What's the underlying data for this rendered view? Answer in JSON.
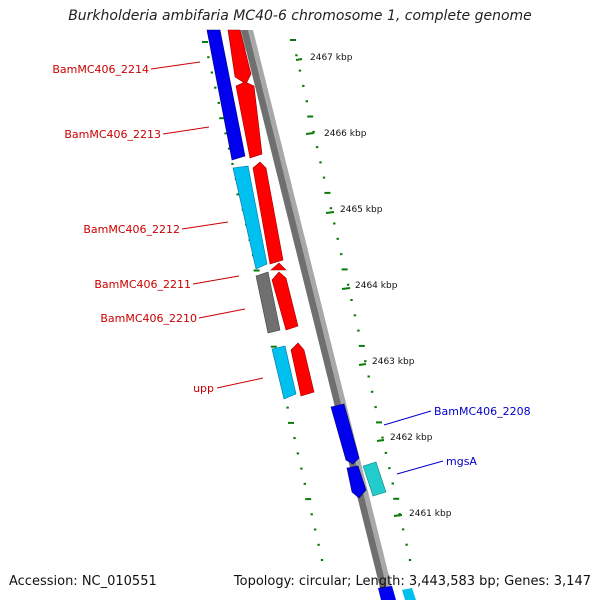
{
  "title": "Burkholderia ambifaria MC40-6 chromosome 1, complete genome",
  "footer": {
    "accession": "Accession: NC_010551",
    "summary": "Topology: circular; Length: 3,443,583 bp; Genes: 3,147"
  },
  "colors": {
    "forward": "#ff0000",
    "reverse_dark": "#0000ee",
    "reverse_light": "#00c0f0",
    "grey_gene": "#707070",
    "teal_gene": "#22cccc",
    "backbone": "#8a8a8a",
    "tick": "#0a7a0a",
    "label_red": "#cc0000",
    "label_blue": "#0000cc"
  },
  "kbp_ticks": [
    {
      "label": "2467 kbp"
    },
    {
      "label": "2466 kbp"
    },
    {
      "label": "2465 kbp"
    },
    {
      "label": "2464 kbp"
    },
    {
      "label": "2463 kbp"
    },
    {
      "label": "2462 kbp"
    },
    {
      "label": "2461 kbp"
    }
  ],
  "gene_labels": [
    {
      "text": "BamMC406_2214",
      "color": "red"
    },
    {
      "text": "BamMC406_2213",
      "color": "red"
    },
    {
      "text": "BamMC406_2212",
      "color": "red"
    },
    {
      "text": "BamMC406_2211",
      "color": "red"
    },
    {
      "text": "BamMC406_2210",
      "color": "red"
    },
    {
      "text": "upp",
      "color": "red"
    },
    {
      "text": "BamMC406_2208",
      "color": "blue"
    },
    {
      "text": "mgsA",
      "color": "blue"
    }
  ]
}
